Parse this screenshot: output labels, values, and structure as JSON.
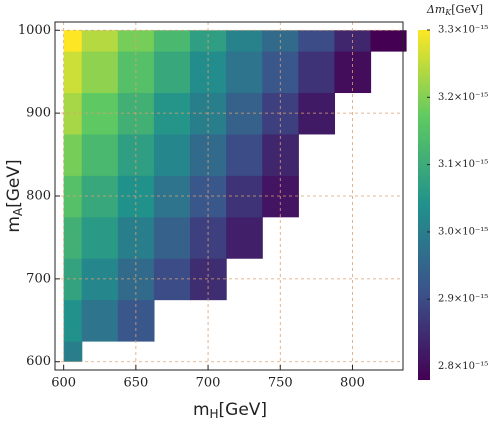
{
  "chart_data": {
    "type": "heatmap",
    "x_label": {
      "base": "m",
      "sub": "H",
      "unit": "[GeV]"
    },
    "y_label": {
      "base": "m",
      "sub": "A",
      "unit": "[GeV]"
    },
    "colorbar_label": {
      "base": "Δm",
      "sub": "K",
      "unit": "[GeV]"
    },
    "colormap": "viridis",
    "x": [
      600,
      625,
      650,
      675,
      700,
      725,
      750,
      775,
      800,
      825
    ],
    "y": [
      600,
      650,
      700,
      750,
      800,
      850,
      900,
      950,
      1000
    ],
    "values": [
      [
        3e-15,
        null,
        null,
        null,
        null,
        null,
        null,
        null,
        null,
        null
      ],
      [
        3.04e-15,
        2.98e-15,
        2.92e-15,
        null,
        null,
        null,
        null,
        null,
        null,
        null
      ],
      [
        3.08e-15,
        3.02e-15,
        2.96e-15,
        2.9e-15,
        2.85e-15,
        null,
        null,
        null,
        null,
        null
      ],
      [
        3.11e-15,
        3.06e-15,
        3e-15,
        2.94e-15,
        2.88e-15,
        2.83e-15,
        null,
        null,
        null,
        null
      ],
      [
        3.15e-15,
        3.09e-15,
        3.04e-15,
        2.98e-15,
        2.92e-15,
        2.86e-15,
        2.81e-15,
        null,
        null,
        null
      ],
      [
        3.19e-15,
        3.13e-15,
        3.07e-15,
        3.02e-15,
        2.96e-15,
        2.9e-15,
        2.84e-15,
        null,
        null,
        null
      ],
      [
        3.23e-15,
        3.17e-15,
        3.11e-15,
        3.05e-15,
        3e-15,
        2.94e-15,
        2.88e-15,
        2.82e-15,
        null,
        null
      ],
      [
        3.26e-15,
        3.21e-15,
        3.15e-15,
        3.09e-15,
        3.03e-15,
        2.98e-15,
        2.92e-15,
        2.86e-15,
        2.8e-15,
        null
      ],
      [
        3.3e-15,
        3.24e-15,
        3.19e-15,
        3.13e-15,
        3.07e-15,
        3.01e-15,
        2.96e-15,
        2.9e-15,
        2.84e-15,
        2.78e-15
      ]
    ],
    "xlim": [
      594,
      835
    ],
    "ylim": [
      590,
      1010
    ],
    "xticks": [
      600,
      650,
      700,
      750,
      800
    ],
    "yticks": [
      600,
      700,
      800,
      900,
      1000
    ],
    "grid": true,
    "grid_color": "#e0a070",
    "clim": [
      2.78e-15,
      3.3e-15
    ],
    "cticks": [
      {
        "value": 2.8e-15,
        "label": "2.8×10⁻¹⁵"
      },
      {
        "value": 2.9e-15,
        "label": "2.9×10⁻¹⁵"
      },
      {
        "value": 3e-15,
        "label": "3.0×10⁻¹⁵"
      },
      {
        "value": 3.1e-15,
        "label": "3.1×10⁻¹⁵"
      },
      {
        "value": 3.2e-15,
        "label": "3.2×10⁻¹⁵"
      },
      {
        "value": 3.3e-15,
        "label": "3.3×10⁻¹⁵"
      }
    ]
  }
}
